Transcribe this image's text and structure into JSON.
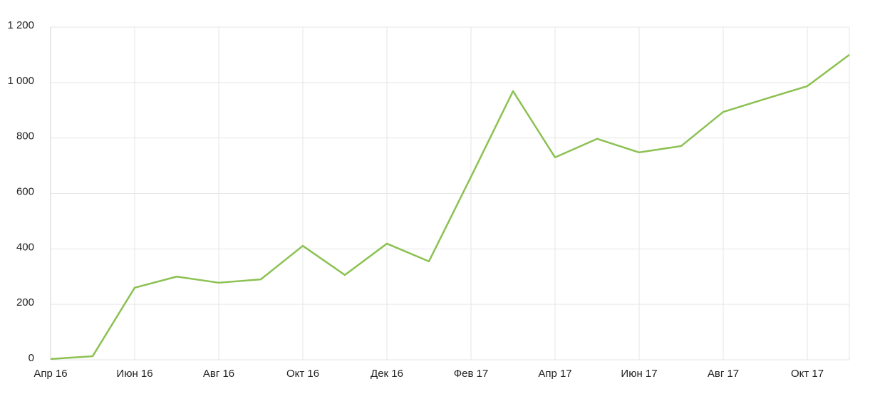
{
  "chart_data": {
    "type": "line",
    "categories": [
      "Апр 16",
      null,
      "Июн 16",
      null,
      "Авг 16",
      null,
      "Окт 16",
      null,
      "Дек 16",
      null,
      "Фев 17",
      null,
      "Апр 17",
      null,
      "Июн 17",
      null,
      "Авг 17",
      null,
      "Окт 17",
      null
    ],
    "series": [
      {
        "color": "#8cc152",
        "values": [
          3,
          13,
          260,
          300,
          278,
          290,
          411,
          306,
          419,
          355,
          660,
          969,
          730,
          797,
          748,
          771,
          894,
          941,
          987,
          1100
        ]
      }
    ],
    "ylim": [
      0,
      1200
    ],
    "yticks": [
      0,
      200,
      400,
      600,
      800,
      {
        "value": 1000,
        "label": "1 000"
      },
      {
        "value": 1200,
        "label": "1 200"
      }
    ],
    "grid": true
  }
}
